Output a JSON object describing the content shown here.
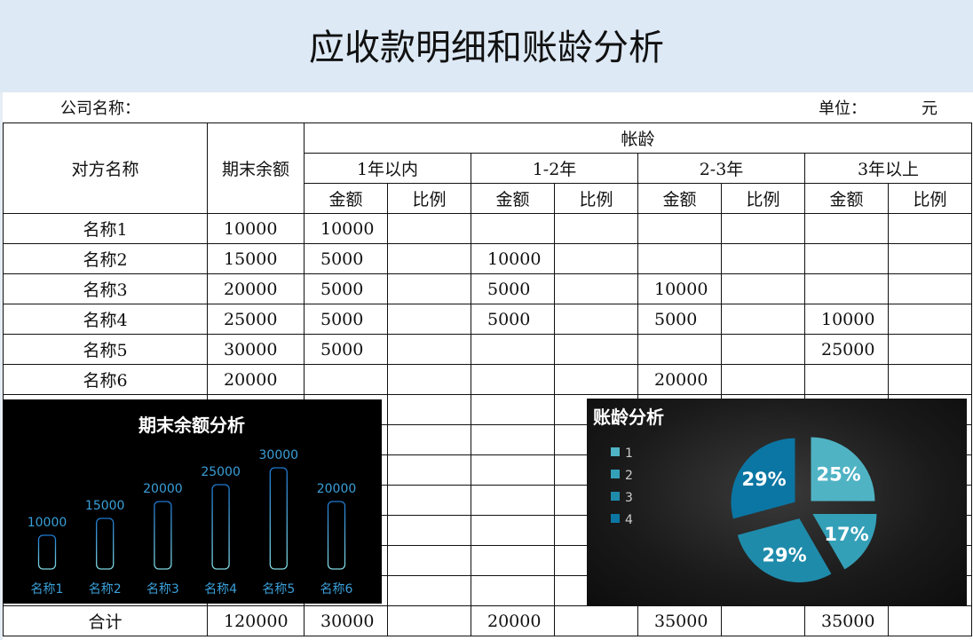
{
  "title": "应收款明细和账龄分析",
  "company_label": "公司名称：",
  "unit_label": "单位：",
  "unit_value": "元",
  "headers": {
    "name": "对方名称",
    "balance": "期末余额",
    "aging": "帐龄",
    "buckets": [
      "1年以内",
      "1-2年",
      "2-3年",
      "3年以上"
    ],
    "amount": "金额",
    "ratio": "比例"
  },
  "rows": [
    {
      "name": "名称1",
      "balance": "10000",
      "b": [
        "10000",
        "",
        "",
        ""
      ]
    },
    {
      "name": "名称2",
      "balance": "15000",
      "b": [
        "5000",
        "10000",
        "",
        ""
      ]
    },
    {
      "name": "名称3",
      "balance": "20000",
      "b": [
        "5000",
        "5000",
        "10000",
        ""
      ]
    },
    {
      "name": "名称4",
      "balance": "25000",
      "b": [
        "5000",
        "5000",
        "5000",
        "10000"
      ]
    },
    {
      "name": "名称5",
      "balance": "30000",
      "b": [
        "5000",
        "",
        "",
        "25000"
      ]
    },
    {
      "name": "名称6",
      "balance": "20000",
      "b": [
        "",
        "",
        "20000",
        ""
      ]
    }
  ],
  "total": {
    "name": "合计",
    "balance": "120000",
    "b": [
      "30000",
      "20000",
      "35000",
      "35000"
    ]
  },
  "chart_data": [
    {
      "type": "bar",
      "title": "期末余额分析",
      "categories": [
        "名称1",
        "名称2",
        "名称3",
        "名称4",
        "名称5",
        "名称6"
      ],
      "values": [
        10000,
        15000,
        20000,
        25000,
        30000,
        20000
      ],
      "data_labels": [
        "10000",
        "15000",
        "20000",
        "25000",
        "30000",
        "20000"
      ],
      "colors": {
        "outline": "#2a8fd6",
        "label": "#3a9fd8"
      }
    },
    {
      "type": "pie",
      "title": "账龄分析",
      "categories": [
        "1",
        "2",
        "3",
        "4"
      ],
      "values": [
        30000,
        20000,
        35000,
        35000
      ],
      "data_labels": [
        "25%",
        "17%",
        "29%",
        "29%"
      ],
      "legend": "left",
      "colors": [
        "#4fb3c4",
        "#34a0b8",
        "#1f8bab",
        "#0b76a3"
      ]
    }
  ]
}
